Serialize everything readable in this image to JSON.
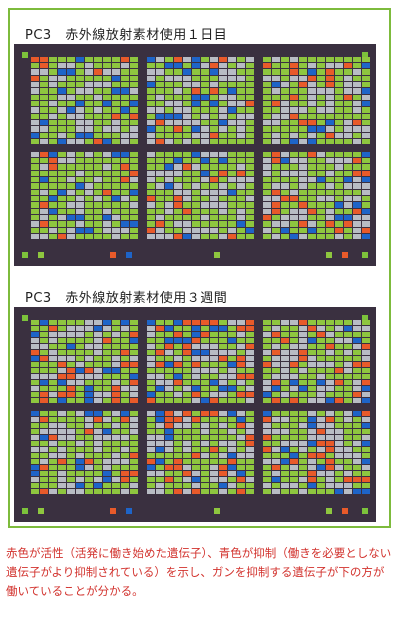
{
  "panels": [
    {
      "title": "PC3　赤外線放射素材使用１日目"
    },
    {
      "title": "PC3　赤外線放射素材使用３週間"
    }
  ],
  "caption": "赤色が活性（活発に働き始めた遺伝子）、青色が抑制（働きを必要としない遺伝子がより抑制されている）を示し、ガンを抑制する遺伝子が下の方が働いていることが分かる。",
  "colors": {
    "frame": "#7dbb3c",
    "panel_bg": "#3a3040",
    "active": "#e85a2a",
    "repressed": "#1e64c8",
    "neutral": "#8ec63f",
    "background_spot": "#b8bcc4",
    "caption": "#d2322d"
  }
}
